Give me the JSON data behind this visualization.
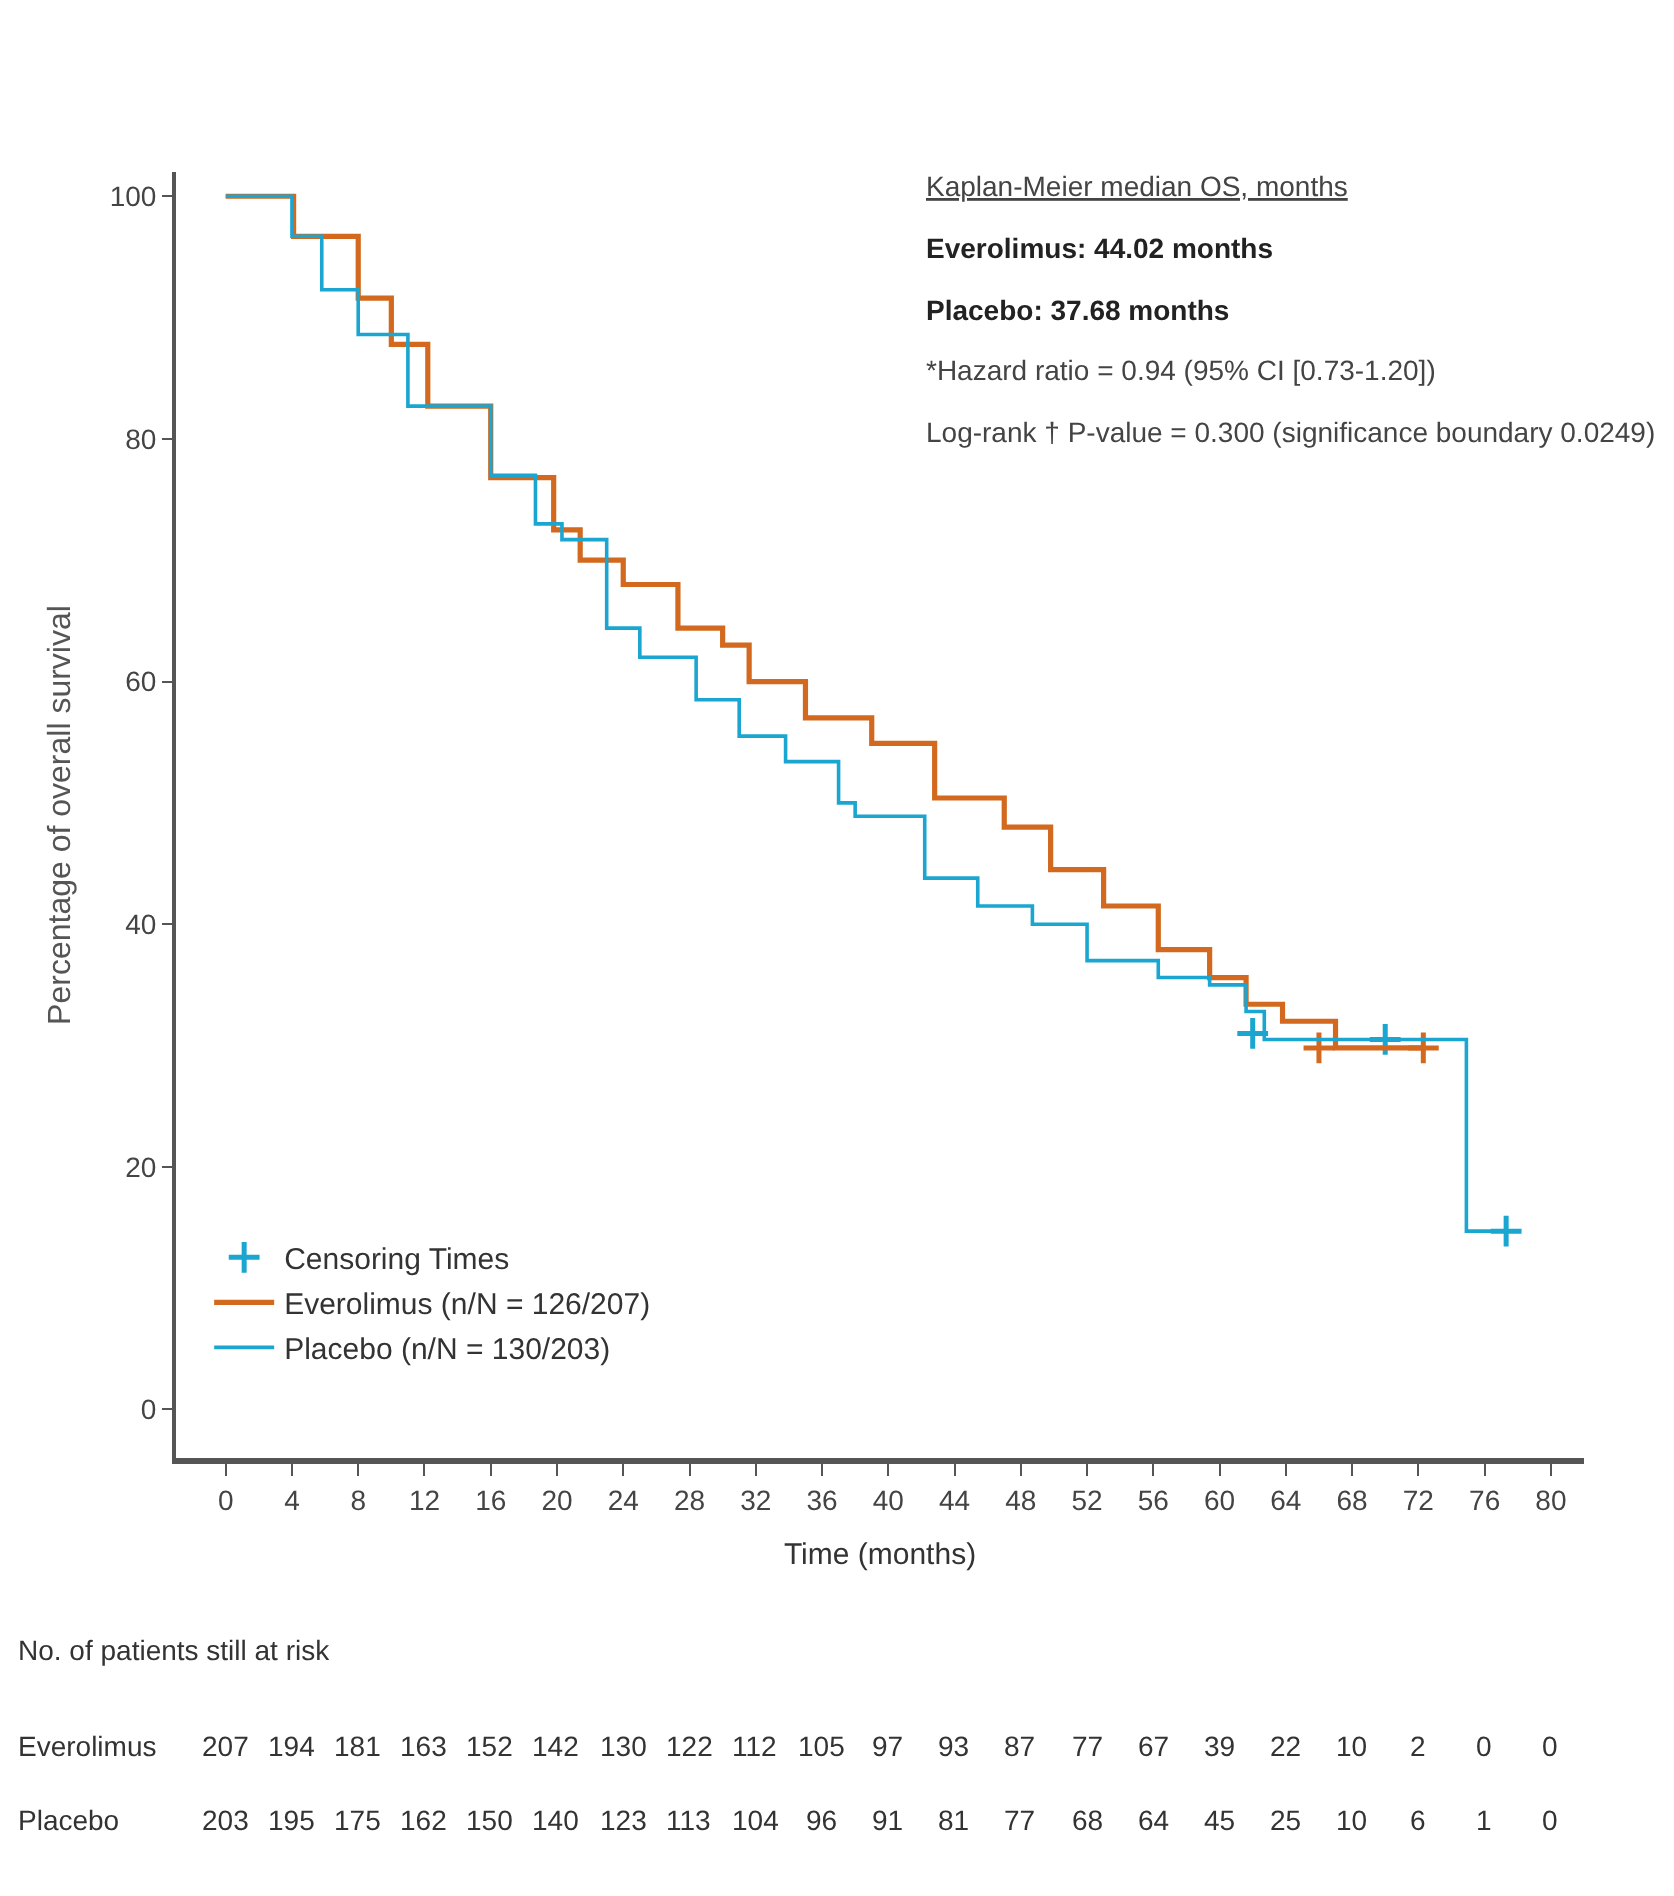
{
  "chart_data": {
    "type": "step",
    "xlabel": "Time (months)",
    "ylabel": "Percentage of overall survival",
    "xlim": [
      -3,
      82
    ],
    "ylim": [
      -4,
      102
    ],
    "xticks": [
      0,
      4,
      8,
      12,
      16,
      20,
      24,
      28,
      32,
      36,
      40,
      44,
      48,
      52,
      56,
      60,
      64,
      68,
      72,
      76,
      80
    ],
    "yticks": [
      0,
      20,
      40,
      60,
      80,
      100
    ],
    "grid": false,
    "legend": "bottom left",
    "line_style": "solid",
    "series": [
      {
        "name": "Censoring Times",
        "type": "scatter",
        "marker": "cross",
        "x": [
          62,
          66,
          70,
          72.3,
          77.3
        ],
        "values": [
          31,
          29.8,
          30.5,
          29.8,
          14.7
        ],
        "colors": [
          "#1aa6d0",
          "#d2691e",
          "#1aa6d0",
          "#d2691e",
          "#1aa6d0"
        ]
      },
      {
        "name": "Everolimus (n/N = 126/207)",
        "color": "#d2691e",
        "x": [
          0,
          4.1,
          8,
          10,
          12.2,
          16,
          19.8,
          21.4,
          24,
          27.3,
          30,
          31.6,
          35,
          39,
          42.8,
          47,
          49.8,
          53,
          56.3,
          59.4,
          61.6,
          63.8,
          67,
          72.3
        ],
        "values": [
          100,
          96.7,
          91.6,
          87.8,
          82.7,
          76.8,
          72.5,
          70,
          68,
          64.4,
          63,
          60,
          57,
          54.9,
          50.4,
          48,
          44.5,
          41.5,
          37.9,
          35.6,
          33.4,
          32,
          29.8,
          29.8
        ]
      },
      {
        "name": "Placebo (n/N = 130/203)",
        "color": "#1aa6d0",
        "x": [
          0,
          4,
          5.8,
          8,
          11,
          16,
          18.7,
          20.3,
          23,
          25,
          28.4,
          31,
          33.8,
          37,
          38,
          42.2,
          45.4,
          48.7,
          52,
          56.3,
          59.4,
          61.6,
          62.7,
          74.9,
          77.3
        ],
        "values": [
          100,
          96.7,
          92.3,
          88.6,
          82.7,
          77,
          73,
          71.7,
          64.4,
          62,
          58.5,
          55.5,
          53.4,
          50,
          48.9,
          43.8,
          41.5,
          40,
          37,
          35.6,
          35,
          32.8,
          30.5,
          14.7,
          14.7
        ]
      }
    ],
    "annotations": [
      "Kaplan-Meier median OS, months",
      "Everolimus: 44.02 months",
      "Placebo: 37.68 months",
      "*Hazard ratio = 0.94 (95% CI [0.73-1.20])",
      "Log-rank † P-value = 0.300 (significance boundary 0.0249)",
      "No. of patients still at risk",
      "Everolimus 207 194 181 163 152 142 130 122 112 105 97 93 87 77 67 39 22 10 2 0 0",
      "Placebo 203 195 175 162 150 140 123 113 104 96 91 81 77 68 64 45 25 10 6 1 0"
    ]
  }
}
